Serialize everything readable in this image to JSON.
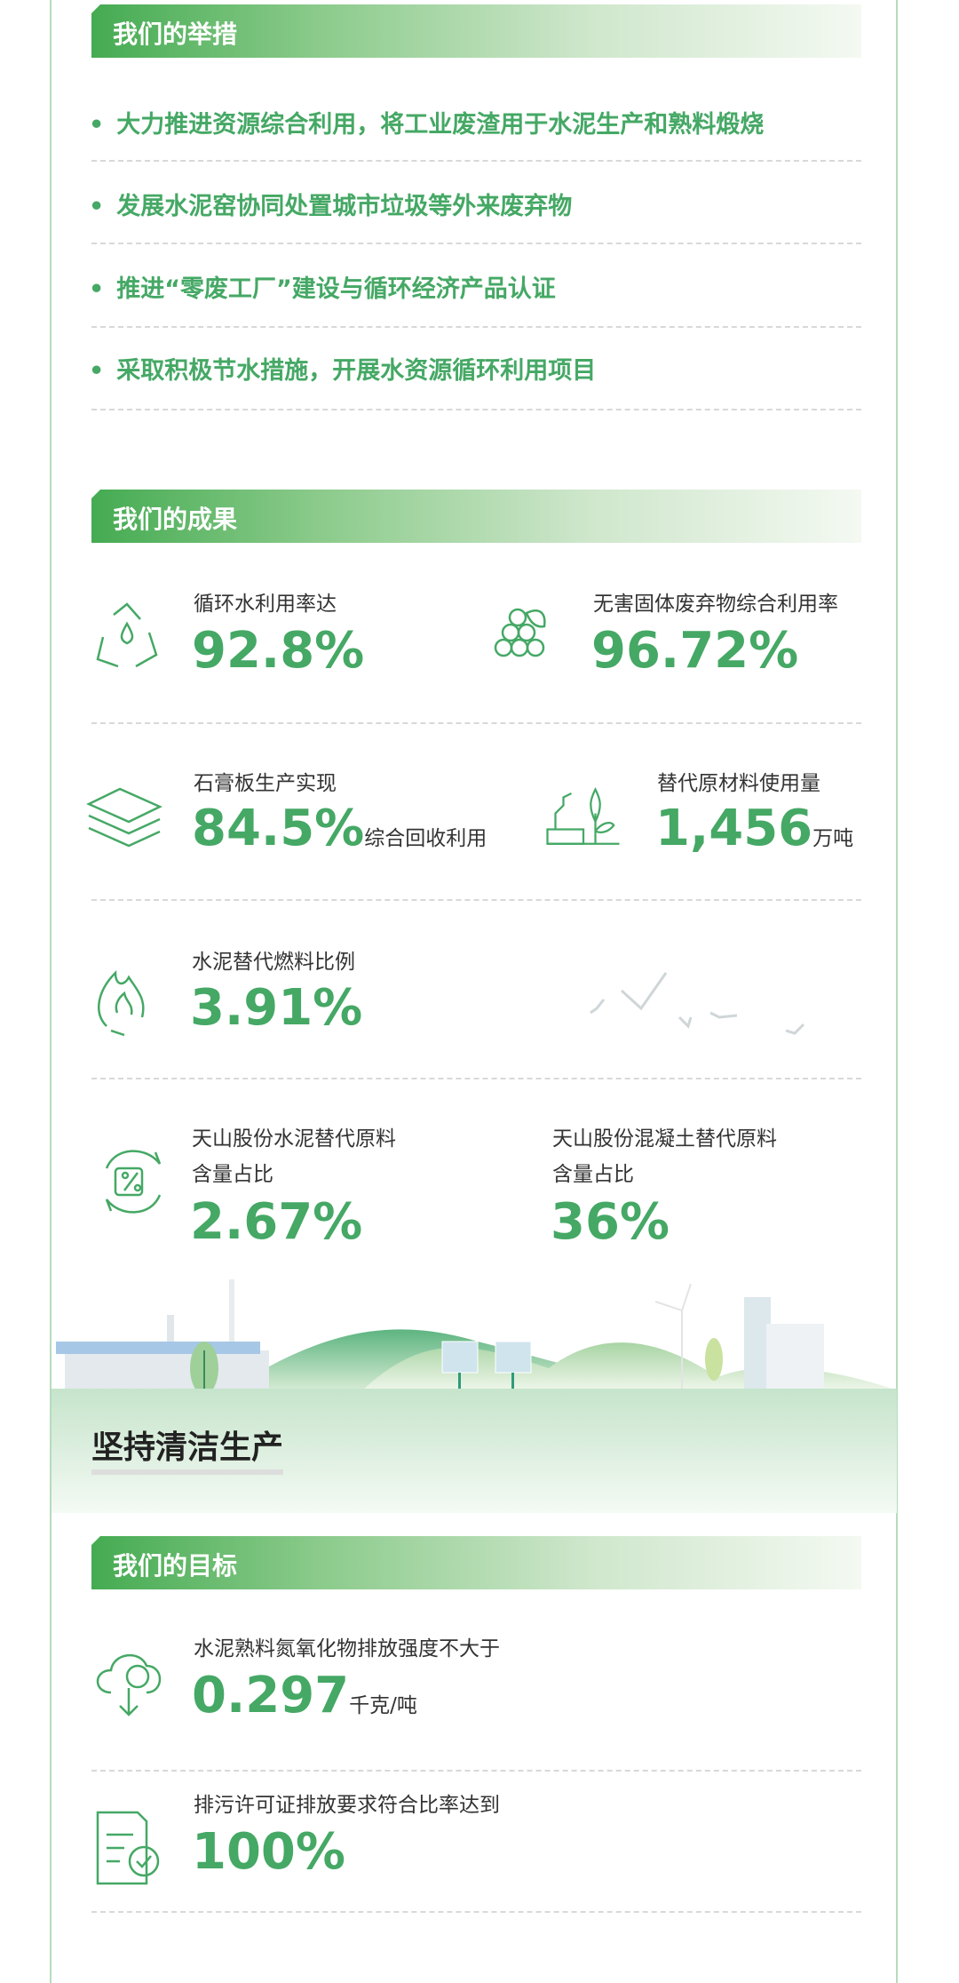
{
  "measures": {
    "title": "我们的举措",
    "items": [
      "大力推进资源综合利用，将工业废渣用于水泥生产和熟料煅烧",
      "发展水泥窑协同处置城市垃圾等外来废弃物",
      "推进“零废工厂”建设与循环经济产品认证",
      "采取积极节水措施，开展水资源循环利用项目"
    ]
  },
  "results": {
    "title": "我们的成果",
    "items": [
      {
        "label": "循环水利用率达",
        "value": "92.8%",
        "unit": "",
        "icon": "recycle-water-icon"
      },
      {
        "label": "无害固体废弃物综合利用率",
        "value": "96.72%",
        "unit": "",
        "icon": "stacked-balls-leaf-icon"
      },
      {
        "label": "石膏板生产实现",
        "value": "84.5%",
        "unit": "综合回收利用",
        "icon": "stacked-boards-icon"
      },
      {
        "label": "替代原材料使用量",
        "value": "1,456",
        "unit": "万吨",
        "icon": "factory-plant-icon"
      },
      {
        "label": "水泥替代燃料比例",
        "value": "3.91%",
        "unit": "",
        "icon": "flame-recycle-icon"
      },
      {
        "label": "天山股份水泥替代原料",
        "label2": "含量占比",
        "value": "2.67%",
        "unit": "",
        "icon": "percent-cycle-icon"
      },
      {
        "label": "天山股份混凝土替代原料",
        "label2": "含量占比",
        "value": "36%",
        "unit": ""
      }
    ]
  },
  "section": {
    "title": "坚持清洁生产"
  },
  "goals": {
    "title": "我们的目标",
    "items": [
      {
        "label": "水泥熟料氮氧化物排放强度不大于",
        "value": "0.297",
        "unit": "千克/吨",
        "icon": "cloud-download-icon"
      },
      {
        "label": "排污许可证排放要求符合比率达到",
        "value": "100%",
        "unit": "",
        "icon": "document-check-icon"
      }
    ]
  },
  "colors": {
    "accent": "#45a865",
    "header": "#45ab52",
    "border": "#b5dcbd"
  }
}
